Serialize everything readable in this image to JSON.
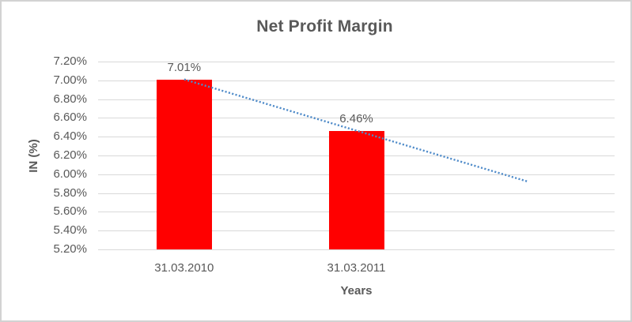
{
  "chart_data": {
    "type": "bar",
    "title": "Net Profit Margin",
    "xlabel": "Years",
    "ylabel": "IN (%)",
    "categories": [
      "31.03.2010",
      "31.03.2011"
    ],
    "values": [
      7.01,
      6.46
    ],
    "value_labels": [
      "7.01%",
      "6.46%"
    ],
    "yticks": [
      "7.20%",
      "7.00%",
      "6.80%",
      "6.60%",
      "6.40%",
      "6.20%",
      "6.00%",
      "5.80%",
      "5.60%",
      "5.40%",
      "5.20%"
    ],
    "ylim": [
      5.2,
      7.2
    ],
    "ytick_step": 0.2,
    "grid": true,
    "legend": "none",
    "x_slots": 3,
    "bar_color": "#ff0000",
    "text_color": "#595959",
    "gridline_color": "#d9d9d9",
    "trendline": {
      "style": "dotted",
      "color": "#4f8bc9",
      "start_slot": 0,
      "start_value": 7.01,
      "end_slot": 2,
      "end_value": 5.92
    }
  }
}
